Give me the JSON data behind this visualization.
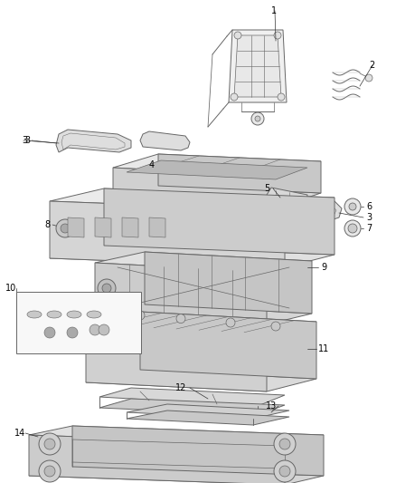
{
  "background_color": "#ffffff",
  "line_color": "#666666",
  "label_color": "#000000",
  "fig_width": 4.38,
  "fig_height": 5.33,
  "dpi": 100,
  "lw": 0.7,
  "label_fs": 7.0
}
